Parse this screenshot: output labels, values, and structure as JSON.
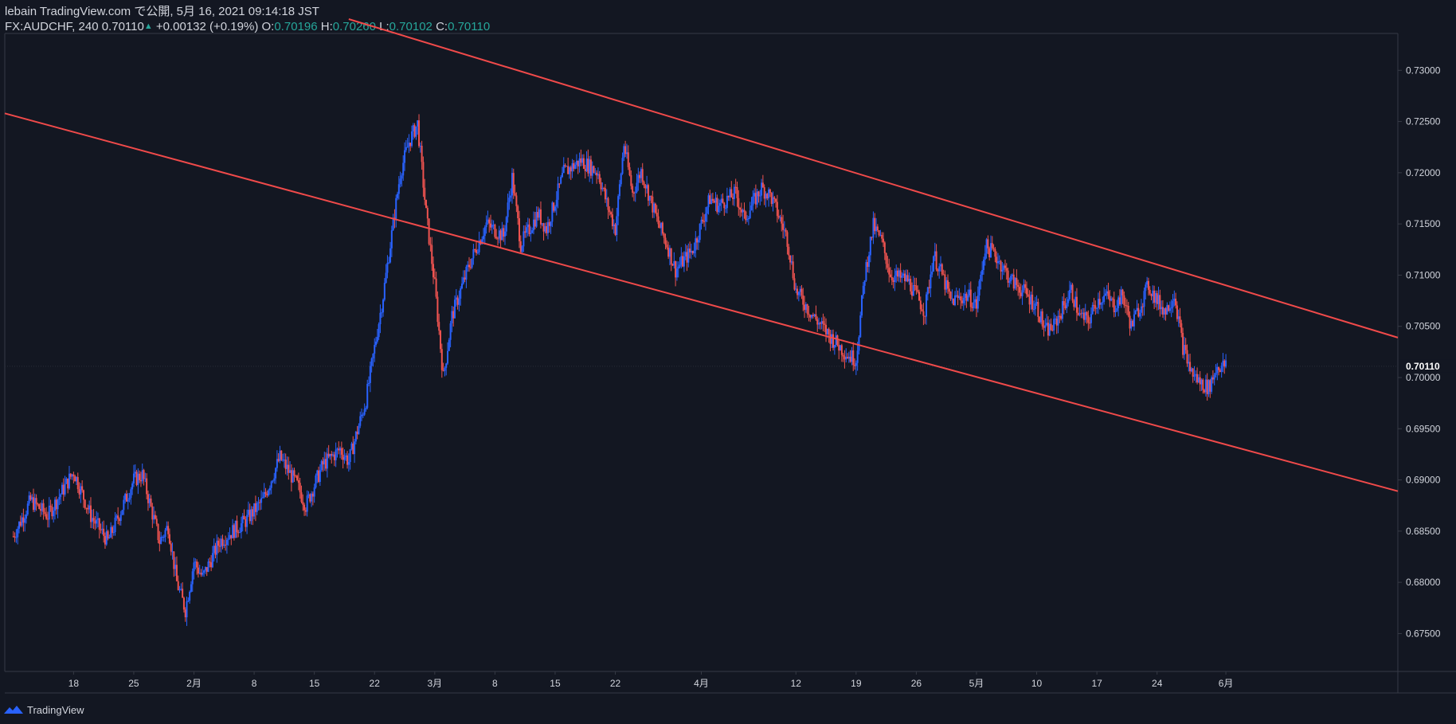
{
  "header": {
    "published_line": "lebain TradingView.com で公開, 5月 16, 2021 09:14:18 JST",
    "symbol": "FX:AUDCHF, 240",
    "last": "0.70110",
    "change": "+0.00132 (+0.19%)",
    "o_label": "O:",
    "o_value": "0.70196",
    "h_label": "H:",
    "h_value": "0.70260",
    "l_label": "L:",
    "l_value": "0.70102",
    "c_label": "C:",
    "c_value": "0.70110"
  },
  "footer": {
    "brand": "TradingView",
    "brand_icon": "tradingview-logo-icon"
  },
  "colors": {
    "background": "#131722",
    "up_candle": "#2962ff",
    "down_candle": "#ef5350",
    "trendline": "#f04a4a",
    "text": "#d1d4dc",
    "accent_green": "#26a69a"
  },
  "chart_data": {
    "type": "candlestick",
    "symbol": "FX:AUDCHF",
    "timeframe_minutes": 240,
    "ylim": [
      0.6713,
      0.7336
    ],
    "y_ticks": [
      "0.73000",
      "0.72500",
      "0.72000",
      "0.71500",
      "0.71000",
      "0.70500",
      "0.70000",
      "0.69500",
      "0.69000",
      "0.68500",
      "0.68000",
      "0.67500"
    ],
    "last_price_label": "0.70110",
    "x_ticks": [
      {
        "label": "18",
        "date": "2021-01-18"
      },
      {
        "label": "25",
        "date": "2021-01-25"
      },
      {
        "label": "2月",
        "date": "2021-02-01"
      },
      {
        "label": "8",
        "date": "2021-02-08"
      },
      {
        "label": "15",
        "date": "2021-02-15"
      },
      {
        "label": "22",
        "date": "2021-02-22"
      },
      {
        "label": "3月",
        "date": "2021-03-01"
      },
      {
        "label": "8",
        "date": "2021-03-08"
      },
      {
        "label": "15",
        "date": "2021-03-15"
      },
      {
        "label": "22",
        "date": "2021-03-22"
      },
      {
        "label": "4月",
        "date": "2021-04-01"
      },
      {
        "label": "12",
        "date": "2021-04-12"
      },
      {
        "label": "19",
        "date": "2021-04-19"
      },
      {
        "label": "26",
        "date": "2021-04-26"
      },
      {
        "label": "5月",
        "date": "2021-05-03"
      },
      {
        "label": "10",
        "date": "2021-05-10"
      },
      {
        "label": "17",
        "date": "2021-05-17"
      },
      {
        "label": "24",
        "date": "2021-05-24"
      },
      {
        "label": "6月",
        "date": "2021-06-01"
      }
    ],
    "price_path": [
      [
        "2021-01-11",
        0.6845
      ],
      [
        "2021-01-13",
        0.688
      ],
      [
        "2021-01-15",
        0.6865
      ],
      [
        "2021-01-18",
        0.6908
      ],
      [
        "2021-01-20",
        0.6865
      ],
      [
        "2021-01-22",
        0.684
      ],
      [
        "2021-01-25",
        0.69
      ],
      [
        "2021-01-26",
        0.6905
      ],
      [
        "2021-01-28",
        0.684
      ],
      [
        "2021-01-29",
        0.6855
      ],
      [
        "2021-01-30",
        0.68
      ],
      [
        "2021-01-31",
        0.6773
      ],
      [
        "2021-02-01",
        0.682
      ],
      [
        "2021-02-02",
        0.6805
      ],
      [
        "2021-02-04",
        0.684
      ],
      [
        "2021-02-07",
        0.686
      ],
      [
        "2021-02-09",
        0.688
      ],
      [
        "2021-02-11",
        0.6922
      ],
      [
        "2021-02-13",
        0.6895
      ],
      [
        "2021-02-14",
        0.6875
      ],
      [
        "2021-02-16",
        0.6915
      ],
      [
        "2021-02-18",
        0.693
      ],
      [
        "2021-02-19",
        0.6918
      ],
      [
        "2021-02-21",
        0.6978
      ],
      [
        "2021-02-23",
        0.708
      ],
      [
        "2021-02-25",
        0.72
      ],
      [
        "2021-02-26",
        0.723
      ],
      [
        "2021-02-27",
        0.7248
      ],
      [
        "2021-02-28",
        0.716
      ],
      [
        "2021-03-01",
        0.709
      ],
      [
        "2021-03-02",
        0.7
      ],
      [
        "2021-03-03",
        0.706
      ],
      [
        "2021-03-05",
        0.711
      ],
      [
        "2021-03-07",
        0.715
      ],
      [
        "2021-03-09",
        0.7138
      ],
      [
        "2021-03-10",
        0.7195
      ],
      [
        "2021-03-11",
        0.713
      ],
      [
        "2021-03-13",
        0.716
      ],
      [
        "2021-03-14",
        0.7145
      ],
      [
        "2021-03-16",
        0.72
      ],
      [
        "2021-03-18",
        0.7212
      ],
      [
        "2021-03-20",
        0.72
      ],
      [
        "2021-03-21",
        0.717
      ],
      [
        "2021-03-22",
        0.7145
      ],
      [
        "2021-03-23",
        0.7228
      ],
      [
        "2021-03-24",
        0.718
      ],
      [
        "2021-03-25",
        0.7202
      ],
      [
        "2021-03-27",
        0.715
      ],
      [
        "2021-03-28",
        0.713
      ],
      [
        "2021-03-29",
        0.7105
      ],
      [
        "2021-03-31",
        0.7125
      ],
      [
        "2021-04-02",
        0.7175
      ],
      [
        "2021-04-03",
        0.7168
      ],
      [
        "2021-04-05",
        0.718
      ],
      [
        "2021-04-06",
        0.7155
      ],
      [
        "2021-04-08",
        0.7185
      ],
      [
        "2021-04-09",
        0.7178
      ],
      [
        "2021-04-10",
        0.7158
      ],
      [
        "2021-04-11",
        0.7135
      ],
      [
        "2021-04-12",
        0.7085
      ],
      [
        "2021-04-14",
        0.706
      ],
      [
        "2021-04-16",
        0.704
      ],
      [
        "2021-04-18",
        0.7022
      ],
      [
        "2021-04-19",
        0.7018
      ],
      [
        "2021-04-20",
        0.71
      ],
      [
        "2021-04-21",
        0.7148
      ],
      [
        "2021-04-22",
        0.7132
      ],
      [
        "2021-04-23",
        0.71
      ],
      [
        "2021-04-25",
        0.7095
      ],
      [
        "2021-04-27",
        0.7065
      ],
      [
        "2021-04-28",
        0.712
      ],
      [
        "2021-04-29",
        0.71
      ],
      [
        "2021-04-30",
        0.7075
      ],
      [
        "2021-05-02",
        0.708
      ],
      [
        "2021-05-03",
        0.707
      ],
      [
        "2021-05-04",
        0.7128
      ],
      [
        "2021-05-05",
        0.7122
      ],
      [
        "2021-05-07",
        0.7095
      ],
      [
        "2021-05-08",
        0.7088
      ],
      [
        "2021-05-10",
        0.707
      ],
      [
        "2021-05-11",
        0.7045
      ],
      [
        "2021-05-12",
        0.705
      ],
      [
        "2021-05-14",
        0.7085
      ],
      [
        "2021-05-15",
        0.706
      ],
      [
        "2021-05-16",
        0.7055
      ],
      [
        "2021-05-17",
        0.7075
      ],
      [
        "2021-05-18",
        0.708
      ],
      [
        "2021-05-19",
        0.707
      ],
      [
        "2021-05-20",
        0.708
      ],
      [
        "2021-05-21",
        0.705
      ],
      [
        "2021-05-22",
        0.707
      ],
      [
        "2021-05-23",
        0.709
      ],
      [
        "2021-05-24",
        0.7075
      ],
      [
        "2021-05-25",
        0.7065
      ],
      [
        "2021-05-26",
        0.7082
      ],
      [
        "2021-05-27",
        0.703
      ],
      [
        "2021-05-28",
        0.7005
      ],
      [
        "2021-05-29",
        0.6995
      ],
      [
        "2021-05-30",
        0.699
      ],
      [
        "2021-05-31",
        0.7011
      ]
    ],
    "trendlines": [
      {
        "name": "upper channel",
        "p1": [
          "2021-02-19",
          0.735
        ],
        "p2": [
          "2021-06-21",
          0.7039
        ]
      },
      {
        "name": "lower channel",
        "p1": [
          "2021-01-10",
          0.7258
        ],
        "p2": [
          "2021-06-21",
          0.6889
        ]
      }
    ]
  }
}
